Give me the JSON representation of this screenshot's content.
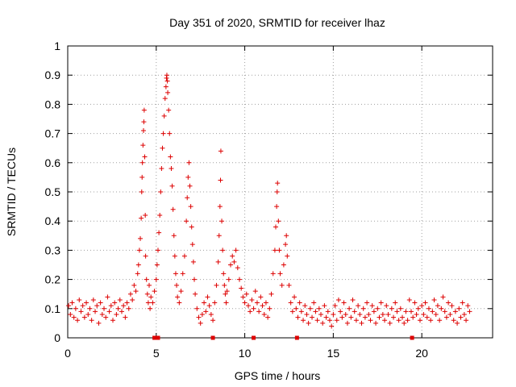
{
  "chart_data": {
    "type": "scatter",
    "title": "Day 351 of 2020, SRMTID for receiver lhaz",
    "xlabel": "GPS time / hours",
    "ylabel": "SRMTID / TECUs",
    "xlim": [
      0,
      24
    ],
    "ylim": [
      0,
      1
    ],
    "x_ticks": [
      "0",
      "5",
      "10",
      "15",
      "20"
    ],
    "y_ticks": [
      "0",
      "0.1",
      "0.2",
      "0.3",
      "0.4",
      "0.5",
      "0.6",
      "0.7",
      "0.8",
      "0.9",
      "1"
    ],
    "grid": true,
    "marker": "+",
    "series_color": "#dd0000",
    "baseline_flags": {
      "marker": "square",
      "y": 0,
      "x": [
        4.9,
        5.1,
        8.2,
        10.5,
        12.95,
        19.45
      ]
    },
    "series": [
      {
        "name": "SRMTID",
        "points": [
          [
            0.05,
            0.11
          ],
          [
            0.15,
            0.08
          ],
          [
            0.25,
            0.12
          ],
          [
            0.35,
            0.07
          ],
          [
            0.45,
            0.1
          ],
          [
            0.55,
            0.06
          ],
          [
            0.65,
            0.13
          ],
          [
            0.75,
            0.09
          ],
          [
            0.85,
            0.11
          ],
          [
            0.95,
            0.07
          ],
          [
            1.05,
            0.12
          ],
          [
            1.15,
            0.08
          ],
          [
            1.25,
            0.1
          ],
          [
            1.35,
            0.06
          ],
          [
            1.45,
            0.13
          ],
          [
            1.55,
            0.09
          ],
          [
            1.65,
            0.11
          ],
          [
            1.75,
            0.05
          ],
          [
            1.85,
            0.12
          ],
          [
            1.95,
            0.08
          ],
          [
            2.05,
            0.1
          ],
          [
            2.15,
            0.07
          ],
          [
            2.25,
            0.14
          ],
          [
            2.35,
            0.09
          ],
          [
            2.45,
            0.11
          ],
          [
            2.55,
            0.06
          ],
          [
            2.65,
            0.12
          ],
          [
            2.75,
            0.08
          ],
          [
            2.85,
            0.1
          ],
          [
            2.95,
            0.13
          ],
          [
            3.05,
            0.09
          ],
          [
            3.15,
            0.11
          ],
          [
            3.25,
            0.07
          ],
          [
            3.35,
            0.12
          ],
          [
            3.45,
            0.1
          ],
          [
            3.55,
            0.15
          ],
          [
            3.65,
            0.13
          ],
          [
            3.75,
            0.18
          ],
          [
            3.85,
            0.16
          ],
          [
            3.95,
            0.22
          ],
          [
            4.0,
            0.25
          ],
          [
            4.05,
            0.3
          ],
          [
            4.1,
            0.34
          ],
          [
            4.15,
            0.41
          ],
          [
            4.18,
            0.5
          ],
          [
            4.2,
            0.55
          ],
          [
            4.22,
            0.6
          ],
          [
            4.25,
            0.66
          ],
          [
            4.28,
            0.71
          ],
          [
            4.3,
            0.74
          ],
          [
            4.32,
            0.78
          ],
          [
            4.35,
            0.62
          ],
          [
            4.38,
            0.42
          ],
          [
            4.4,
            0.28
          ],
          [
            4.45,
            0.2
          ],
          [
            4.5,
            0.15
          ],
          [
            4.55,
            0.12
          ],
          [
            4.6,
            0.18
          ],
          [
            4.65,
            0.1
          ],
          [
            4.7,
            0.14
          ],
          [
            4.8,
            0.12
          ],
          [
            4.9,
            0.16
          ],
          [
            5.0,
            0.2
          ],
          [
            5.05,
            0.25
          ],
          [
            5.1,
            0.3
          ],
          [
            5.15,
            0.36
          ],
          [
            5.2,
            0.42
          ],
          [
            5.25,
            0.5
          ],
          [
            5.3,
            0.58
          ],
          [
            5.35,
            0.65
          ],
          [
            5.4,
            0.7
          ],
          [
            5.45,
            0.76
          ],
          [
            5.5,
            0.82
          ],
          [
            5.55,
            0.86
          ],
          [
            5.58,
            0.89
          ],
          [
            5.6,
            0.9
          ],
          [
            5.63,
            0.88
          ],
          [
            5.65,
            0.84
          ],
          [
            5.7,
            0.78
          ],
          [
            5.75,
            0.7
          ],
          [
            5.8,
            0.62
          ],
          [
            5.85,
            0.58
          ],
          [
            5.9,
            0.52
          ],
          [
            5.95,
            0.44
          ],
          [
            6.0,
            0.35
          ],
          [
            6.05,
            0.28
          ],
          [
            6.1,
            0.22
          ],
          [
            6.15,
            0.18
          ],
          [
            6.2,
            0.14
          ],
          [
            6.3,
            0.12
          ],
          [
            6.4,
            0.16
          ],
          [
            6.5,
            0.22
          ],
          [
            6.6,
            0.28
          ],
          [
            6.7,
            0.4
          ],
          [
            6.75,
            0.48
          ],
          [
            6.8,
            0.55
          ],
          [
            6.85,
            0.6
          ],
          [
            6.9,
            0.52
          ],
          [
            6.95,
            0.45
          ],
          [
            7.0,
            0.38
          ],
          [
            7.05,
            0.32
          ],
          [
            7.1,
            0.26
          ],
          [
            7.15,
            0.2
          ],
          [
            7.2,
            0.15
          ],
          [
            7.3,
            0.1
          ],
          [
            7.4,
            0.07
          ],
          [
            7.5,
            0.05
          ],
          [
            7.6,
            0.08
          ],
          [
            7.7,
            0.12
          ],
          [
            7.8,
            0.09
          ],
          [
            7.9,
            0.14
          ],
          [
            8.0,
            0.11
          ],
          [
            8.1,
            0.08
          ],
          [
            8.2,
            0.06
          ],
          [
            8.3,
            0.12
          ],
          [
            8.4,
            0.18
          ],
          [
            8.5,
            0.26
          ],
          [
            8.55,
            0.35
          ],
          [
            8.6,
            0.45
          ],
          [
            8.63,
            0.54
          ],
          [
            8.65,
            0.64
          ],
          [
            8.7,
            0.4
          ],
          [
            8.75,
            0.3
          ],
          [
            8.8,
            0.22
          ],
          [
            8.85,
            0.18
          ],
          [
            8.9,
            0.15
          ],
          [
            8.95,
            0.12
          ],
          [
            9.0,
            0.16
          ],
          [
            9.1,
            0.2
          ],
          [
            9.2,
            0.25
          ],
          [
            9.3,
            0.28
          ],
          [
            9.4,
            0.26
          ],
          [
            9.5,
            0.3
          ],
          [
            9.6,
            0.24
          ],
          [
            9.7,
            0.2
          ],
          [
            9.8,
            0.17
          ],
          [
            9.9,
            0.14
          ],
          [
            10.0,
            0.12
          ],
          [
            10.1,
            0.15
          ],
          [
            10.2,
            0.11
          ],
          [
            10.3,
            0.09
          ],
          [
            10.4,
            0.13
          ],
          [
            10.5,
            0.1
          ],
          [
            10.6,
            0.16
          ],
          [
            10.7,
            0.12
          ],
          [
            10.8,
            0.09
          ],
          [
            10.9,
            0.14
          ],
          [
            11.0,
            0.11
          ],
          [
            11.1,
            0.08
          ],
          [
            11.2,
            0.12
          ],
          [
            11.3,
            0.07
          ],
          [
            11.4,
            0.1
          ],
          [
            11.5,
            0.15
          ],
          [
            11.6,
            0.22
          ],
          [
            11.7,
            0.3
          ],
          [
            11.75,
            0.38
          ],
          [
            11.8,
            0.45
          ],
          [
            11.83,
            0.5
          ],
          [
            11.85,
            0.53
          ],
          [
            11.9,
            0.4
          ],
          [
            11.95,
            0.3
          ],
          [
            12.0,
            0.22
          ],
          [
            12.1,
            0.18
          ],
          [
            12.2,
            0.25
          ],
          [
            12.3,
            0.32
          ],
          [
            12.35,
            0.35
          ],
          [
            12.4,
            0.28
          ],
          [
            12.5,
            0.18
          ],
          [
            12.6,
            0.12
          ],
          [
            12.7,
            0.09
          ],
          [
            12.8,
            0.14
          ],
          [
            12.9,
            0.1
          ],
          [
            13.0,
            0.07
          ],
          [
            13.1,
            0.12
          ],
          [
            13.2,
            0.09
          ],
          [
            13.3,
            0.06
          ],
          [
            13.4,
            0.11
          ],
          [
            13.5,
            0.08
          ],
          [
            13.6,
            0.05
          ],
          [
            13.7,
            0.1
          ],
          [
            13.8,
            0.07
          ],
          [
            13.9,
            0.12
          ],
          [
            14.0,
            0.09
          ],
          [
            14.1,
            0.06
          ],
          [
            14.2,
            0.1
          ],
          [
            14.3,
            0.08
          ],
          [
            14.4,
            0.05
          ],
          [
            14.5,
            0.11
          ],
          [
            14.6,
            0.07
          ],
          [
            14.7,
            0.09
          ],
          [
            14.8,
            0.06
          ],
          [
            14.9,
            0.04
          ],
          [
            15.0,
            0.08
          ],
          [
            15.1,
            0.11
          ],
          [
            15.2,
            0.06
          ],
          [
            15.3,
            0.13
          ],
          [
            15.4,
            0.09
          ],
          [
            15.5,
            0.07
          ],
          [
            15.6,
            0.12
          ],
          [
            15.7,
            0.08
          ],
          [
            15.8,
            0.05
          ],
          [
            15.9,
            0.1
          ],
          [
            16.0,
            0.07
          ],
          [
            16.1,
            0.13
          ],
          [
            16.2,
            0.09
          ],
          [
            16.3,
            0.06
          ],
          [
            16.4,
            0.11
          ],
          [
            16.5,
            0.08
          ],
          [
            16.6,
            0.05
          ],
          [
            16.7,
            0.1
          ],
          [
            16.8,
            0.07
          ],
          [
            16.9,
            0.12
          ],
          [
            17.0,
            0.08
          ],
          [
            17.1,
            0.06
          ],
          [
            17.2,
            0.11
          ],
          [
            17.3,
            0.09
          ],
          [
            17.4,
            0.05
          ],
          [
            17.5,
            0.1
          ],
          [
            17.6,
            0.07
          ],
          [
            17.7,
            0.12
          ],
          [
            17.8,
            0.08
          ],
          [
            17.9,
            0.06
          ],
          [
            18.0,
            0.11
          ],
          [
            18.1,
            0.08
          ],
          [
            18.2,
            0.05
          ],
          [
            18.3,
            0.1
          ],
          [
            18.4,
            0.07
          ],
          [
            18.5,
            0.12
          ],
          [
            18.6,
            0.09
          ],
          [
            18.7,
            0.06
          ],
          [
            18.8,
            0.1
          ],
          [
            18.9,
            0.07
          ],
          [
            19.0,
            0.05
          ],
          [
            19.1,
            0.09
          ],
          [
            19.2,
            0.06
          ],
          [
            19.3,
            0.13
          ],
          [
            19.4,
            0.09
          ],
          [
            19.5,
            0.07
          ],
          [
            19.6,
            0.12
          ],
          [
            19.7,
            0.08
          ],
          [
            19.8,
            0.1
          ],
          [
            19.9,
            0.06
          ],
          [
            20.0,
            0.11
          ],
          [
            20.1,
            0.08
          ],
          [
            20.2,
            0.12
          ],
          [
            20.3,
            0.07
          ],
          [
            20.4,
            0.1
          ],
          [
            20.5,
            0.06
          ],
          [
            20.6,
            0.09
          ],
          [
            20.7,
            0.13
          ],
          [
            20.8,
            0.08
          ],
          [
            20.9,
            0.11
          ],
          [
            21.0,
            0.06
          ],
          [
            21.1,
            0.1
          ],
          [
            21.2,
            0.14
          ],
          [
            21.3,
            0.09
          ],
          [
            21.4,
            0.07
          ],
          [
            21.5,
            0.12
          ],
          [
            21.6,
            0.08
          ],
          [
            21.7,
            0.11
          ],
          [
            21.8,
            0.06
          ],
          [
            21.9,
            0.09
          ],
          [
            22.0,
            0.05
          ],
          [
            22.1,
            0.1
          ],
          [
            22.2,
            0.07
          ],
          [
            22.3,
            0.12
          ],
          [
            22.4,
            0.08
          ],
          [
            22.5,
            0.06
          ],
          [
            22.6,
            0.11
          ],
          [
            22.7,
            0.09
          ]
        ]
      }
    ]
  }
}
